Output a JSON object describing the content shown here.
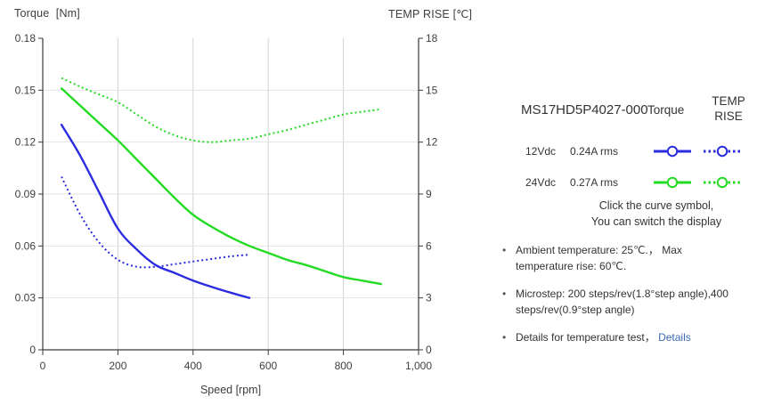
{
  "chart": {
    "title_left": "Torque  [Nm]",
    "title_right": "TEMP RISE [℃]",
    "xlabel": "Speed [rpm]"
  },
  "chart_data": {
    "type": "line",
    "title": "",
    "xlabel": "Speed [rpm]",
    "ylabel_left": "Torque [Nm]",
    "ylabel_right": "TEMP RISE [℃]",
    "xlim": [
      0,
      1000
    ],
    "ylim_left": [
      0,
      0.18
    ],
    "ylim_right": [
      0,
      18
    ],
    "grid": true,
    "legend_position": "right-panel",
    "x_ticks": {
      "values": [
        0,
        200,
        400,
        600,
        800,
        1000
      ],
      "labels": [
        "0",
        "200",
        "400",
        "600",
        "800",
        "1,000"
      ]
    },
    "y_ticks_left": {
      "values": [
        0.18,
        0.15,
        0.12,
        0.09,
        0.06,
        0.03,
        0
      ],
      "labels": [
        "0.18",
        "0.15",
        "0.12",
        "0.09",
        "0.06",
        "0.03",
        "0"
      ]
    },
    "y_ticks_right": {
      "values": [
        18,
        15,
        12,
        9,
        6,
        3,
        0
      ],
      "labels": [
        "18",
        "15",
        "12",
        "9",
        "6",
        "3",
        "0"
      ]
    },
    "series": [
      {
        "name": "12Vdc Torque",
        "axis": "left",
        "style": "solid",
        "color": "#2b2be0",
        "points": [
          [
            50,
            0.13
          ],
          [
            100,
            0.112
          ],
          [
            150,
            0.091
          ],
          [
            200,
            0.07
          ],
          [
            250,
            0.058
          ],
          [
            300,
            0.049
          ],
          [
            350,
            0.0445
          ],
          [
            400,
            0.04
          ],
          [
            450,
            0.0363
          ],
          [
            500,
            0.033
          ],
          [
            550,
            0.03
          ]
        ]
      },
      {
        "name": "12Vdc TEMP RISE",
        "axis": "right",
        "style": "dotted",
        "color": "#2b2be0",
        "points": [
          [
            50,
            10.0
          ],
          [
            100,
            7.8
          ],
          [
            150,
            6.2
          ],
          [
            200,
            5.2
          ],
          [
            250,
            4.8
          ],
          [
            300,
            4.8
          ],
          [
            350,
            4.95
          ],
          [
            400,
            5.1
          ],
          [
            450,
            5.25
          ],
          [
            500,
            5.4
          ],
          [
            550,
            5.5
          ]
        ]
      },
      {
        "name": "24Vdc Torque",
        "axis": "left",
        "style": "solid",
        "color": "#22db22",
        "points": [
          [
            50,
            0.151
          ],
          [
            100,
            0.141
          ],
          [
            150,
            0.131
          ],
          [
            200,
            0.121
          ],
          [
            250,
            0.11
          ],
          [
            300,
            0.099
          ],
          [
            350,
            0.088
          ],
          [
            400,
            0.078
          ],
          [
            450,
            0.071
          ],
          [
            500,
            0.065
          ],
          [
            550,
            0.06
          ],
          [
            600,
            0.056
          ],
          [
            650,
            0.052
          ],
          [
            700,
            0.049
          ],
          [
            750,
            0.0455
          ],
          [
            800,
            0.042
          ],
          [
            850,
            0.04
          ],
          [
            900,
            0.038
          ]
        ]
      },
      {
        "name": "24Vdc TEMP RISE",
        "axis": "right",
        "style": "dotted",
        "color": "#22db22",
        "points": [
          [
            50,
            15.7
          ],
          [
            100,
            15.2
          ],
          [
            150,
            14.75
          ],
          [
            200,
            14.3
          ],
          [
            250,
            13.6
          ],
          [
            300,
            12.9
          ],
          [
            350,
            12.4
          ],
          [
            400,
            12.1
          ],
          [
            450,
            12.0
          ],
          [
            500,
            12.1
          ],
          [
            550,
            12.2
          ],
          [
            600,
            12.45
          ],
          [
            650,
            12.7
          ],
          [
            700,
            13.0
          ],
          [
            750,
            13.3
          ],
          [
            800,
            13.6
          ],
          [
            850,
            13.75
          ],
          [
            900,
            13.9
          ]
        ]
      }
    ]
  },
  "legend": {
    "model": "MS17HD5P4027-000",
    "col_torque": "Torque",
    "col_temp_line1": "TEMP",
    "col_temp_line2": "RISE",
    "rows": [
      {
        "voltage": "12Vdc",
        "current": "0.24A rms",
        "color": "#2b2be0"
      },
      {
        "voltage": "24Vdc",
        "current": "0.27A rms",
        "color": "#22db22"
      }
    ],
    "hint_line1": "Click the curve symbol,",
    "hint_line2": "You can switch the display"
  },
  "notes": {
    "bullets": [
      {
        "line1": "Ambient temperature: 25℃.，  Max",
        "line2": "temperature rise: 60℃."
      },
      {
        "line1": "Microstep: 200 steps/rev(1.8°step angle),400",
        "line2": "steps/rev(0.9°step angle)"
      },
      {
        "text": "Details for temperature test， ",
        "link": "Details"
      }
    ],
    "link_color": "#3c6ab8"
  }
}
